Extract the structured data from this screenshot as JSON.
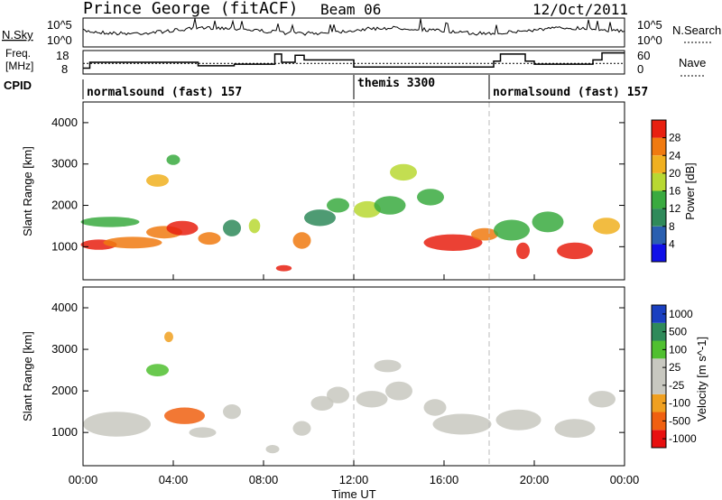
{
  "chart_data": {
    "type": "heatmap",
    "title": "Prince George (fitACF)",
    "beam": "Beam 06",
    "date": "12/Oct/2011",
    "xlabel": "Time UT",
    "x_ticks": [
      "00:00",
      "04:00",
      "08:00",
      "12:00",
      "16:00",
      "20:00",
      "00:00"
    ],
    "xlim_hours": [
      0,
      24
    ],
    "header": {
      "nsky_label": "N.Sky",
      "nsky_scale": [
        "10^5",
        "10^0"
      ],
      "nsearch_label": "N.Search",
      "nsearch_scale": [
        "10^5",
        "10^0"
      ],
      "freq_label": [
        "Freq.",
        "[MHz]"
      ],
      "freq_scale": [
        "18",
        "8"
      ],
      "nave_label": "Nave",
      "nave_scale": [
        "60",
        "0"
      ],
      "cpid_label": "CPID",
      "frequency_steps": [
        {
          "start": 0.0,
          "end": 0.3,
          "value": 0.25
        },
        {
          "start": 0.3,
          "end": 5.1,
          "value": 0.5
        },
        {
          "start": 5.1,
          "end": 6.7,
          "value": 0.35
        },
        {
          "start": 6.7,
          "end": 8.5,
          "value": 0.42
        },
        {
          "start": 8.5,
          "end": 8.8,
          "value": 0.85
        },
        {
          "start": 8.8,
          "end": 9.4,
          "value": 0.5
        },
        {
          "start": 9.4,
          "end": 9.8,
          "value": 0.8
        },
        {
          "start": 9.8,
          "end": 12.0,
          "value": 0.6
        },
        {
          "start": 12.0,
          "end": 18.2,
          "value": 0.3
        },
        {
          "start": 18.2,
          "end": 18.5,
          "value": 0.55
        },
        {
          "start": 18.5,
          "end": 19.6,
          "value": 0.85
        },
        {
          "start": 19.6,
          "end": 20.0,
          "value": 0.55
        },
        {
          "start": 20.0,
          "end": 22.6,
          "value": 0.42
        },
        {
          "start": 22.6,
          "end": 23.0,
          "value": 0.6
        },
        {
          "start": 23.0,
          "end": 24.0,
          "value": 0.9
        }
      ],
      "cpid_segments": [
        {
          "label": "normalsound (fast) 157",
          "start": 0,
          "end": 12
        },
        {
          "label": "themis 3300",
          "start": 12,
          "end": 18
        },
        {
          "label": "normalsound (fast) 157",
          "start": 18,
          "end": 24
        }
      ],
      "nave_reference": 0.45
    },
    "panels": [
      {
        "name": "power",
        "ylabel": "Slant Range [km]",
        "ylim": [
          200,
          4500
        ],
        "y_ticks": [
          1000,
          2000,
          3000,
          4000
        ],
        "colorbar_label": "Power [dB]",
        "colorbar_ticks": [
          "28",
          "24",
          "20",
          "16",
          "12",
          "8",
          "4"
        ],
        "colorbar_range": [
          0,
          32
        ],
        "colorbar_colors": [
          "#1010e8",
          "#2a5fb0",
          "#2f8a5a",
          "#3aaa40",
          "#b8d832",
          "#f0b020",
          "#f07a10",
          "#e82010"
        ],
        "blobs": [
          {
            "t": 0.7,
            "r": 1050,
            "w": 1.6,
            "h": 250,
            "level": 28
          },
          {
            "t": 2.2,
            "r": 1100,
            "w": 2.6,
            "h": 280,
            "level": 26
          },
          {
            "t": 3.6,
            "r": 1350,
            "w": 1.6,
            "h": 300,
            "level": 24
          },
          {
            "t": 1.2,
            "r": 1600,
            "w": 2.6,
            "h": 250,
            "level": 14
          },
          {
            "t": 3.3,
            "r": 2600,
            "w": 1.0,
            "h": 300,
            "level": 20
          },
          {
            "t": 4.0,
            "r": 3100,
            "w": 0.6,
            "h": 250,
            "level": 14
          },
          {
            "t": 4.4,
            "r": 1450,
            "w": 1.4,
            "h": 350,
            "level": 28
          },
          {
            "t": 5.6,
            "r": 1200,
            "w": 1.0,
            "h": 300,
            "level": 24
          },
          {
            "t": 6.6,
            "r": 1450,
            "w": 0.8,
            "h": 400,
            "level": 10
          },
          {
            "t": 7.6,
            "r": 1500,
            "w": 0.5,
            "h": 350,
            "level": 16
          },
          {
            "t": 8.9,
            "r": 480,
            "w": 0.7,
            "h": 150,
            "level": 30
          },
          {
            "t": 9.7,
            "r": 1150,
            "w": 0.8,
            "h": 400,
            "level": 26
          },
          {
            "t": 10.5,
            "r": 1700,
            "w": 1.4,
            "h": 400,
            "level": 10
          },
          {
            "t": 11.3,
            "r": 2000,
            "w": 1.0,
            "h": 350,
            "level": 14
          },
          {
            "t": 12.6,
            "r": 1900,
            "w": 1.2,
            "h": 400,
            "level": 18
          },
          {
            "t": 13.6,
            "r": 2000,
            "w": 1.4,
            "h": 450,
            "level": 14
          },
          {
            "t": 14.2,
            "r": 2800,
            "w": 1.2,
            "h": 400,
            "level": 16
          },
          {
            "t": 15.4,
            "r": 2200,
            "w": 1.2,
            "h": 400,
            "level": 12
          },
          {
            "t": 16.4,
            "r": 1100,
            "w": 2.6,
            "h": 400,
            "level": 28
          },
          {
            "t": 17.8,
            "r": 1300,
            "w": 1.2,
            "h": 300,
            "level": 26
          },
          {
            "t": 19.0,
            "r": 1400,
            "w": 1.6,
            "h": 500,
            "level": 14
          },
          {
            "t": 19.5,
            "r": 900,
            "w": 0.6,
            "h": 400,
            "level": 28
          },
          {
            "t": 20.6,
            "r": 1600,
            "w": 1.4,
            "h": 500,
            "level": 12
          },
          {
            "t": 21.8,
            "r": 900,
            "w": 1.6,
            "h": 400,
            "level": 30
          },
          {
            "t": 23.2,
            "r": 1500,
            "w": 1.2,
            "h": 400,
            "level": 20
          }
        ]
      },
      {
        "name": "velocity",
        "ylabel": "Slant Range [km]",
        "ylim": [
          200,
          4500
        ],
        "y_ticks": [
          1000,
          2000,
          3000,
          4000
        ],
        "colorbar_label": "Velocity [m s^-1]",
        "colorbar_ticks": [
          "1000",
          "500",
          "100",
          "25",
          "-25",
          "-100",
          "-500",
          "-1000"
        ],
        "colorbar_range": [
          -1200,
          1200
        ],
        "colorbar_colors": [
          "#e81010",
          "#f06010",
          "#f0a020",
          "#c8c8c0",
          "#c8c8c0",
          "#50c030",
          "#2f8a5a",
          "#1a3fc0"
        ],
        "blobs": [
          {
            "t": 1.5,
            "r": 1200,
            "w": 3.0,
            "h": 600,
            "level": 0
          },
          {
            "t": 4.5,
            "r": 1400,
            "w": 1.8,
            "h": 400,
            "level": -700
          },
          {
            "t": 5.3,
            "r": 1000,
            "w": 1.2,
            "h": 250,
            "level": -300
          },
          {
            "t": 3.3,
            "r": 2500,
            "w": 1.0,
            "h": 300,
            "level": 300
          },
          {
            "t": 3.8,
            "r": 3300,
            "w": 0.4,
            "h": 250,
            "level": -600
          },
          {
            "t": 6.6,
            "r": 1500,
            "w": 0.8,
            "h": 350,
            "level": 200
          },
          {
            "t": 8.4,
            "r": 600,
            "w": 0.6,
            "h": 200,
            "level": 100
          },
          {
            "t": 9.7,
            "r": 1100,
            "w": 0.8,
            "h": 350,
            "level": 0
          },
          {
            "t": 10.6,
            "r": 1700,
            "w": 1.0,
            "h": 350,
            "level": 60
          },
          {
            "t": 11.3,
            "r": 1900,
            "w": 1.0,
            "h": 400,
            "level": -200
          },
          {
            "t": 12.8,
            "r": 1800,
            "w": 1.4,
            "h": 400,
            "level": -250
          },
          {
            "t": 14.0,
            "r": 2000,
            "w": 1.2,
            "h": 450,
            "level": 120
          },
          {
            "t": 13.5,
            "r": 2600,
            "w": 1.2,
            "h": 300,
            "level": 0
          },
          {
            "t": 15.6,
            "r": 1600,
            "w": 1.0,
            "h": 400,
            "level": 200
          },
          {
            "t": 16.8,
            "r": 1200,
            "w": 2.6,
            "h": 500,
            "level": 0
          },
          {
            "t": 19.3,
            "r": 1300,
            "w": 2.0,
            "h": 500,
            "level": 0
          },
          {
            "t": 21.8,
            "r": 1100,
            "w": 1.8,
            "h": 450,
            "level": 0
          },
          {
            "t": 23.0,
            "r": 1800,
            "w": 1.2,
            "h": 400,
            "level": 150
          }
        ]
      }
    ]
  }
}
